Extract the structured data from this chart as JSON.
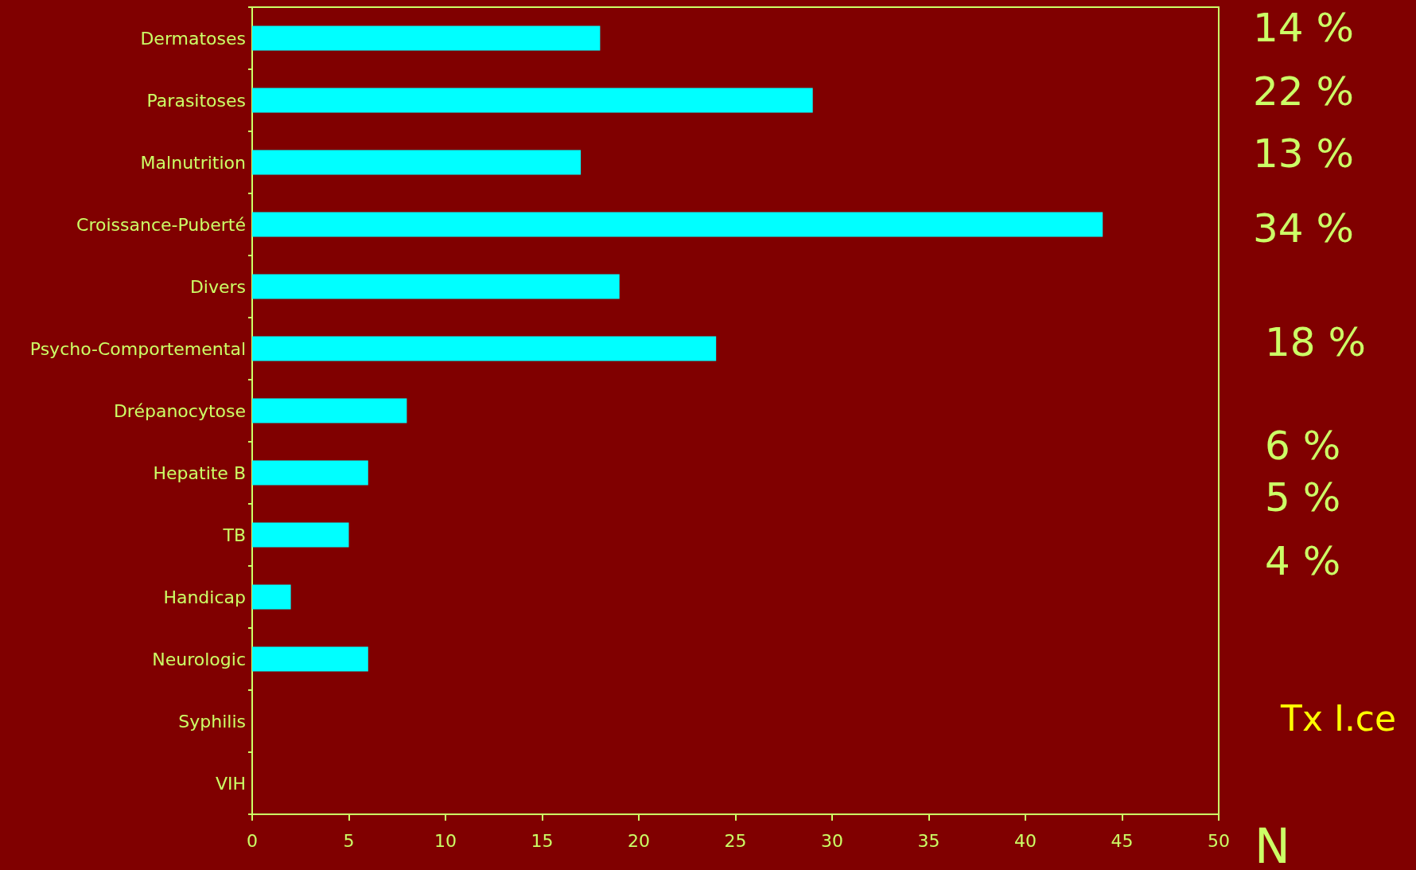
{
  "chart_data": {
    "type": "bar",
    "orientation": "horizontal",
    "xlabel": "N",
    "categories": [
      "Dermatoses",
      "Parasitoses",
      "Malnutrition",
      "Croissance-Puberté",
      "Divers",
      "Psycho-Comportemental",
      "Drépanocytose",
      "Hepatite B",
      "TB",
      "Handicap",
      "Neurologic",
      "Syphilis",
      "VIH"
    ],
    "values": [
      18,
      29,
      17,
      44,
      19,
      24,
      8,
      6,
      5,
      2,
      6,
      0,
      0
    ],
    "color": "#00ffff",
    "xlim": [
      0,
      50
    ],
    "xticks": [
      0,
      5,
      10,
      15,
      20,
      25,
      30,
      35,
      40,
      45,
      50
    ],
    "annotations": [
      "14 %",
      "22 %",
      "13 %",
      "34 %",
      "18 %",
      "6 %",
      "5 %",
      "4 %",
      "Tx I.ce"
    ]
  }
}
